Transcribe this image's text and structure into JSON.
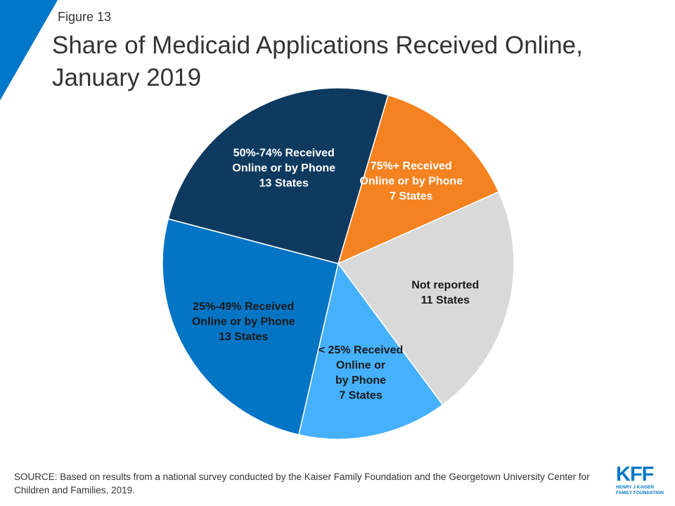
{
  "figure_label": "Figure 13",
  "title_line1": "Share of Medicaid Applications Received Online,",
  "title_line2": "January 2019",
  "chart_data": {
    "type": "pie",
    "unit": "States",
    "slices": [
      {
        "label_lines": [
          "75%+ Received",
          "Online or by Phone",
          "7 States"
        ],
        "value": 7,
        "color": "#f58220",
        "text_color": "#ffffff"
      },
      {
        "label_lines": [
          "Not reported",
          "11 States"
        ],
        "value": 11,
        "color": "#d9d9d9",
        "text_color": "#1a1a1a"
      },
      {
        "label_lines": [
          "< 25% Received",
          "Online or",
          "by Phone",
          "7 States"
        ],
        "value": 7,
        "color": "#45b0fc",
        "text_color": "#1a1a1a"
      },
      {
        "label_lines": [
          "25%-49% Received",
          "Online or by Phone",
          "13 States"
        ],
        "value": 13,
        "color": "#0474c4",
        "text_color": "#1a1a1a"
      },
      {
        "label_lines": [
          "50%-74% Received",
          "Online or by Phone",
          "13 States"
        ],
        "value": 13,
        "color": "#0f3a5f",
        "text_color": "#ffffff"
      }
    ]
  },
  "source_text": "SOURCE: Based on results from a national survey conducted by the Kaiser Family Foundation and the Georgetown University Center for Children and Families, 2019.",
  "logo": {
    "mark": "KFF",
    "line1": "HENRY J KAISER",
    "line2": "FAMILY FOUNDATION"
  },
  "colors": {
    "accent": "#0077c8"
  }
}
